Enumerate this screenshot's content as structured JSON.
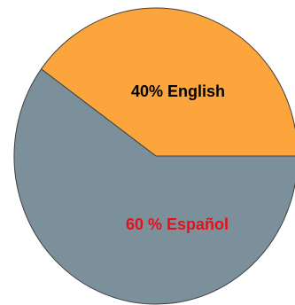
{
  "chart_data": {
    "type": "pie",
    "slices": [
      {
        "label": "40% English",
        "value": 40,
        "color": "#fba53c",
        "label_color": "#000000"
      },
      {
        "label": "60 % Español",
        "value": 60,
        "color": "#7b909b",
        "label_color": "#e5101b"
      }
    ],
    "title": "",
    "legend": "none"
  },
  "colors": {
    "outline": "#404040"
  }
}
